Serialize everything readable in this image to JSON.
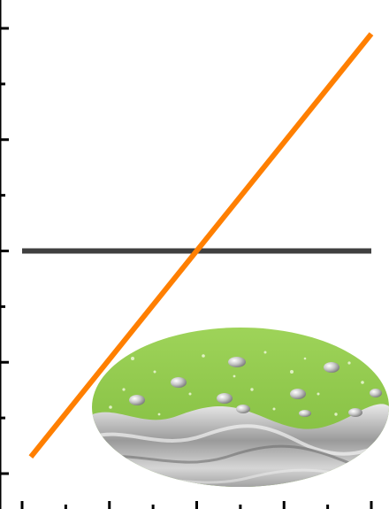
{
  "chart_data": {
    "type": "line",
    "title": "",
    "xlabel": "",
    "ylabel": "",
    "xlim": [
      0,
      4
    ],
    "ylim": [
      0,
      4
    ],
    "x_ticks": [
      0,
      1,
      2,
      3,
      4
    ],
    "y_ticks": [
      0,
      1,
      2,
      3,
      4
    ],
    "tick_labels_shown": false,
    "grid": false,
    "legend": "none",
    "series": [
      {
        "x": [
          0.1,
          4.0
        ],
        "y": [
          0.15,
          3.95
        ],
        "color": "#ff7f00"
      },
      {
        "x": [
          0.0,
          4.0
        ],
        "y": [
          2.0,
          2.0
        ],
        "color": "#404040"
      }
    ],
    "inset_image": {
      "description_icon": "droplets-on-wavy-metal-surface-image",
      "colors": {
        "top": "#8cc63f",
        "bottom": "#b8b8b8"
      }
    }
  }
}
